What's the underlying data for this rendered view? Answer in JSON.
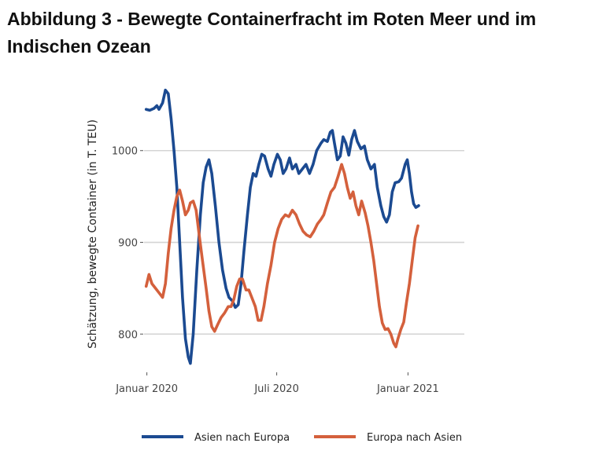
{
  "title": "Abbildung 3 - Bewegte Containerfracht im Roten Meer und im Indischen Ozean",
  "chart_data": {
    "type": "line",
    "title": "Abbildung 3 - Bewegte Containerfracht im Roten Meer und im Indischen Ozean",
    "xlabel": "",
    "ylabel": "Schätzung, bewegte Container (in T. TEU)",
    "ylim": [
      760,
      1070
    ],
    "xlim": [
      "2019-12-28",
      "2021-03-21"
    ],
    "x_ticks": [
      {
        "date": "2020-01-01",
        "label": "Januar 2020"
      },
      {
        "date": "2020-07-01",
        "label": "Juli 2020"
      },
      {
        "date": "2021-01-01",
        "label": "Januar 2021"
      }
    ],
    "y_ticks": [
      {
        "value": 800,
        "label": "800"
      },
      {
        "value": 900,
        "label": "900"
      },
      {
        "value": 1000,
        "label": "1000"
      }
    ],
    "grid": "horizontal",
    "legend": "bottom",
    "series": [
      {
        "name": "Asien nach Europa",
        "color": "#1b4a91",
        "points": [
          [
            "2019-12-31",
            1045
          ],
          [
            "2020-01-05",
            1044
          ],
          [
            "2020-01-11",
            1046
          ],
          [
            "2020-01-15",
            1049
          ],
          [
            "2020-01-18",
            1045
          ],
          [
            "2020-01-23",
            1052
          ],
          [
            "2020-01-27",
            1066
          ],
          [
            "2020-01-31",
            1062
          ],
          [
            "2020-02-04",
            1035
          ],
          [
            "2020-02-08",
            1000
          ],
          [
            "2020-02-12",
            960
          ],
          [
            "2020-02-16",
            900
          ],
          [
            "2020-02-20",
            840
          ],
          [
            "2020-02-24",
            795
          ],
          [
            "2020-02-28",
            775
          ],
          [
            "2020-03-02",
            768
          ],
          [
            "2020-03-06",
            800
          ],
          [
            "2020-03-11",
            870
          ],
          [
            "2020-03-16",
            930
          ],
          [
            "2020-03-20",
            965
          ],
          [
            "2020-03-24",
            982
          ],
          [
            "2020-03-28",
            990
          ],
          [
            "2020-04-01",
            975
          ],
          [
            "2020-04-06",
            940
          ],
          [
            "2020-04-11",
            900
          ],
          [
            "2020-04-16",
            870
          ],
          [
            "2020-04-21",
            850
          ],
          [
            "2020-04-25",
            840
          ],
          [
            "2020-04-30",
            836
          ],
          [
            "2020-05-04",
            829
          ],
          [
            "2020-05-08",
            832
          ],
          [
            "2020-05-12",
            855
          ],
          [
            "2020-05-16",
            890
          ],
          [
            "2020-05-21",
            930
          ],
          [
            "2020-05-25",
            960
          ],
          [
            "2020-05-29",
            975
          ],
          [
            "2020-06-02",
            972
          ],
          [
            "2020-06-06",
            985
          ],
          [
            "2020-06-10",
            996
          ],
          [
            "2020-06-14",
            994
          ],
          [
            "2020-06-19",
            980
          ],
          [
            "2020-06-23",
            972
          ],
          [
            "2020-06-27",
            985
          ],
          [
            "2020-07-02",
            996
          ],
          [
            "2020-07-06",
            990
          ],
          [
            "2020-07-10",
            975
          ],
          [
            "2020-07-14",
            980
          ],
          [
            "2020-07-19",
            992
          ],
          [
            "2020-07-23",
            980
          ],
          [
            "2020-07-28",
            985
          ],
          [
            "2020-08-01",
            975
          ],
          [
            "2020-08-06",
            980
          ],
          [
            "2020-08-11",
            985
          ],
          [
            "2020-08-16",
            975
          ],
          [
            "2020-08-21",
            985
          ],
          [
            "2020-08-26",
            1000
          ],
          [
            "2020-09-01",
            1008
          ],
          [
            "2020-09-05",
            1012
          ],
          [
            "2020-09-10",
            1010
          ],
          [
            "2020-09-14",
            1020
          ],
          [
            "2020-09-17",
            1022
          ],
          [
            "2020-09-20",
            1008
          ],
          [
            "2020-09-24",
            990
          ],
          [
            "2020-09-28",
            994
          ],
          [
            "2020-10-02",
            1015
          ],
          [
            "2020-10-06",
            1008
          ],
          [
            "2020-10-10",
            995
          ],
          [
            "2020-10-14",
            1012
          ],
          [
            "2020-10-18",
            1022
          ],
          [
            "2020-10-22",
            1010
          ],
          [
            "2020-10-27",
            1002
          ],
          [
            "2020-11-01",
            1005
          ],
          [
            "2020-11-05",
            990
          ],
          [
            "2020-11-10",
            980
          ],
          [
            "2020-11-15",
            985
          ],
          [
            "2020-11-19",
            960
          ],
          [
            "2020-11-24",
            940
          ],
          [
            "2020-11-28",
            928
          ],
          [
            "2020-12-02",
            922
          ],
          [
            "2020-12-06",
            930
          ],
          [
            "2020-12-10",
            955
          ],
          [
            "2020-12-14",
            965
          ],
          [
            "2020-12-19",
            966
          ],
          [
            "2020-12-23",
            970
          ],
          [
            "2020-12-28",
            985
          ],
          [
            "2020-12-31",
            990
          ],
          [
            "2021-01-03",
            975
          ],
          [
            "2021-01-06",
            955
          ],
          [
            "2021-01-09",
            942
          ],
          [
            "2021-01-12",
            938
          ],
          [
            "2021-01-16",
            940
          ]
        ]
      },
      {
        "name": "Europa nach Asien",
        "color": "#d4603c",
        "points": [
          [
            "2019-12-31",
            852
          ],
          [
            "2020-01-04",
            865
          ],
          [
            "2020-01-08",
            855
          ],
          [
            "2020-01-13",
            850
          ],
          [
            "2020-01-18",
            845
          ],
          [
            "2020-01-23",
            840
          ],
          [
            "2020-01-27",
            855
          ],
          [
            "2020-01-31",
            888
          ],
          [
            "2020-02-04",
            915
          ],
          [
            "2020-02-08",
            935
          ],
          [
            "2020-02-12",
            950
          ],
          [
            "2020-02-16",
            957
          ],
          [
            "2020-02-20",
            945
          ],
          [
            "2020-02-24",
            930
          ],
          [
            "2020-02-28",
            935
          ],
          [
            "2020-03-02",
            943
          ],
          [
            "2020-03-06",
            945
          ],
          [
            "2020-03-10",
            935
          ],
          [
            "2020-03-14",
            910
          ],
          [
            "2020-03-19",
            880
          ],
          [
            "2020-03-24",
            850
          ],
          [
            "2020-03-28",
            825
          ],
          [
            "2020-04-01",
            808
          ],
          [
            "2020-04-05",
            803
          ],
          [
            "2020-04-09",
            810
          ],
          [
            "2020-04-14",
            818
          ],
          [
            "2020-04-19",
            823
          ],
          [
            "2020-04-24",
            830
          ],
          [
            "2020-04-28",
            830
          ],
          [
            "2020-05-02",
            838
          ],
          [
            "2020-05-06",
            852
          ],
          [
            "2020-05-10",
            860
          ],
          [
            "2020-05-14",
            860
          ],
          [
            "2020-05-19",
            848
          ],
          [
            "2020-05-23",
            848
          ],
          [
            "2020-05-27",
            840
          ],
          [
            "2020-06-01",
            830
          ],
          [
            "2020-06-05",
            815
          ],
          [
            "2020-06-09",
            815
          ],
          [
            "2020-06-13",
            830
          ],
          [
            "2020-06-18",
            855
          ],
          [
            "2020-06-23",
            875
          ],
          [
            "2020-06-28",
            900
          ],
          [
            "2020-07-03",
            915
          ],
          [
            "2020-07-08",
            925
          ],
          [
            "2020-07-13",
            930
          ],
          [
            "2020-07-18",
            928
          ],
          [
            "2020-07-23",
            935
          ],
          [
            "2020-07-28",
            930
          ],
          [
            "2020-08-02",
            920
          ],
          [
            "2020-08-07",
            912
          ],
          [
            "2020-08-12",
            908
          ],
          [
            "2020-08-17",
            906
          ],
          [
            "2020-08-22",
            912
          ],
          [
            "2020-08-27",
            920
          ],
          [
            "2020-09-01",
            925
          ],
          [
            "2020-09-05",
            930
          ],
          [
            "2020-09-10",
            943
          ],
          [
            "2020-09-15",
            955
          ],
          [
            "2020-09-20",
            960
          ],
          [
            "2020-09-25",
            972
          ],
          [
            "2020-09-30",
            985
          ],
          [
            "2020-10-04",
            975
          ],
          [
            "2020-10-08",
            960
          ],
          [
            "2020-10-12",
            948
          ],
          [
            "2020-10-16",
            955
          ],
          [
            "2020-10-20",
            940
          ],
          [
            "2020-10-24",
            930
          ],
          [
            "2020-10-28",
            945
          ],
          [
            "2020-11-02",
            932
          ],
          [
            "2020-11-06",
            918
          ],
          [
            "2020-11-10",
            900
          ],
          [
            "2020-11-14",
            880
          ],
          [
            "2020-11-18",
            855
          ],
          [
            "2020-11-22",
            830
          ],
          [
            "2020-11-26",
            812
          ],
          [
            "2020-11-30",
            805
          ],
          [
            "2020-12-04",
            806
          ],
          [
            "2020-12-08",
            800
          ],
          [
            "2020-12-12",
            790
          ],
          [
            "2020-12-15",
            786
          ],
          [
            "2020-12-18",
            795
          ],
          [
            "2020-12-22",
            805
          ],
          [
            "2020-12-26",
            813
          ],
          [
            "2020-12-30",
            835
          ],
          [
            "2021-01-03",
            855
          ],
          [
            "2021-01-07",
            880
          ],
          [
            "2021-01-11",
            905
          ],
          [
            "2021-01-15",
            918
          ]
        ]
      }
    ]
  }
}
